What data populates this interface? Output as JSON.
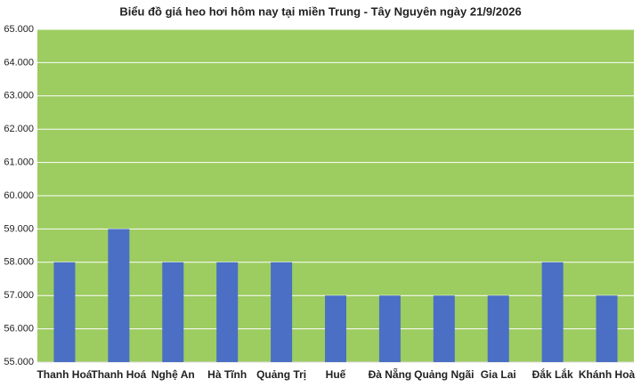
{
  "chart_data": {
    "type": "bar",
    "title": "Biểu đồ giá heo hơi hôm nay tại miền Trung - Tây Nguyên ngày 21/9/2026",
    "categories": [
      "Thanh Hoá",
      "Thanh Hoá",
      "Nghệ An",
      "Hà Tĩnh",
      "Quảng Trị",
      "Huế",
      "Đà Nẵng",
      "Quảng Ngãi",
      "Gia Lai",
      "Đắk Lắk",
      "Khánh Hoà"
    ],
    "values": [
      58000,
      59000,
      58000,
      58000,
      58000,
      57000,
      57000,
      57000,
      57000,
      58000,
      57000
    ],
    "color": "#4a6fc4",
    "plot_background": "#9dcc60",
    "ylim": [
      55000,
      65000
    ],
    "yticks": [
      {
        "value": 55000,
        "label": "55.000"
      },
      {
        "value": 56000,
        "label": "56.000"
      },
      {
        "value": 57000,
        "label": "57.000"
      },
      {
        "value": 58000,
        "label": "58.000"
      },
      {
        "value": 59000,
        "label": "59.000"
      },
      {
        "value": 60000,
        "label": "60.000"
      },
      {
        "value": 61000,
        "label": "61.000"
      },
      {
        "value": 62000,
        "label": "62.000"
      },
      {
        "value": 63000,
        "label": "63.000"
      },
      {
        "value": 64000,
        "label": "64.000"
      },
      {
        "value": 65000,
        "label": "65.000"
      }
    ],
    "grid": true
  }
}
